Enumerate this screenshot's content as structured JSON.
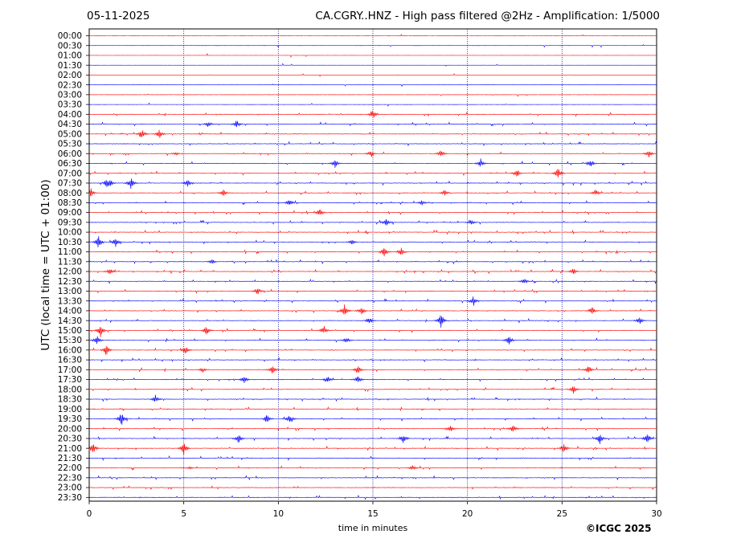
{
  "header": {
    "date": "05-11-2025",
    "title": "CA.CGRY..HNZ - High pass filtered @2Hz - Amplification: 1/5000"
  },
  "footer": {
    "copyright": "©ICGC 2025"
  },
  "colors": {
    "red_trace": "#ff0000",
    "blue_trace": "#0000ff",
    "grid": "#00008b"
  },
  "chart_data": {
    "type": "line",
    "title": "CA.CGRY..HNZ - High pass filtered @2Hz - Amplification: 1/5000",
    "xlabel": "time in minutes",
    "ylabel": "UTC (local time = UTC + 01:00)",
    "xlim": [
      0,
      30
    ],
    "x_ticks": [
      0,
      5,
      10,
      15,
      20,
      25,
      30
    ],
    "grid": "vertical dotted at 5-minute intervals",
    "rows": [
      "00:00",
      "00:30",
      "01:00",
      "01:30",
      "02:00",
      "02:30",
      "03:00",
      "03:30",
      "04:00",
      "04:30",
      "05:00",
      "05:30",
      "06:00",
      "06:30",
      "07:00",
      "07:30",
      "08:00",
      "08:30",
      "09:00",
      "09:30",
      "10:00",
      "10:30",
      "11:00",
      "11:30",
      "12:00",
      "12:30",
      "13:00",
      "13:30",
      "14:00",
      "14:30",
      "15:00",
      "15:30",
      "16:00",
      "16:30",
      "17:00",
      "17:30",
      "18:00",
      "18:30",
      "19:00",
      "19:30",
      "20:00",
      "20:30",
      "21:00",
      "21:30",
      "22:00",
      "22:30",
      "23:00",
      "23:30"
    ],
    "row_colors": "alternating red (even rows) / blue (odd rows)",
    "events": [
      {
        "row": "04:00",
        "minute": 15.0,
        "amp": 0.6
      },
      {
        "row": "04:30",
        "minute": 6.3,
        "amp": 0.4
      },
      {
        "row": "04:30",
        "minute": 7.8,
        "amp": 0.5
      },
      {
        "row": "05:00",
        "minute": 2.8,
        "amp": 0.7
      },
      {
        "row": "05:00",
        "minute": 3.7,
        "amp": 0.6
      },
      {
        "row": "06:00",
        "minute": 4.6,
        "amp": 0.2
      },
      {
        "row": "06:00",
        "minute": 14.9,
        "amp": 0.4
      },
      {
        "row": "06:00",
        "minute": 18.6,
        "amp": 0.5
      },
      {
        "row": "06:00",
        "minute": 29.6,
        "amp": 0.5
      },
      {
        "row": "06:30",
        "minute": 13.0,
        "amp": 0.5
      },
      {
        "row": "06:30",
        "minute": 20.7,
        "amp": 0.5
      },
      {
        "row": "06:30",
        "minute": 26.5,
        "amp": 0.5
      },
      {
        "row": "07:00",
        "minute": 22.6,
        "amp": 0.5
      },
      {
        "row": "07:00",
        "minute": 24.8,
        "amp": 0.8
      },
      {
        "row": "07:30",
        "minute": 0.9,
        "amp": 0.4
      },
      {
        "row": "07:30",
        "minute": 1.1,
        "amp": 0.5
      },
      {
        "row": "07:30",
        "minute": 2.2,
        "amp": 0.7
      },
      {
        "row": "07:30",
        "minute": 5.2,
        "amp": 0.5
      },
      {
        "row": "08:00",
        "minute": 0.1,
        "amp": 0.5
      },
      {
        "row": "08:00",
        "minute": 7.1,
        "amp": 0.4
      },
      {
        "row": "08:00",
        "minute": 18.8,
        "amp": 0.4
      },
      {
        "row": "08:00",
        "minute": 26.8,
        "amp": 0.4
      },
      {
        "row": "08:30",
        "minute": 10.6,
        "amp": 0.5
      },
      {
        "row": "08:30",
        "minute": 17.6,
        "amp": 0.3
      },
      {
        "row": "09:00",
        "minute": 12.2,
        "amp": 0.5
      },
      {
        "row": "09:30",
        "minute": 15.7,
        "amp": 0.5
      },
      {
        "row": "09:30",
        "minute": 20.2,
        "amp": 0.3
      },
      {
        "row": "10:30",
        "minute": 0.5,
        "amp": 0.8
      },
      {
        "row": "10:30",
        "minute": 1.4,
        "amp": 0.6
      },
      {
        "row": "10:30",
        "minute": 13.9,
        "amp": 0.3
      },
      {
        "row": "11:00",
        "minute": 15.6,
        "amp": 0.6
      },
      {
        "row": "11:00",
        "minute": 16.5,
        "amp": 0.5
      },
      {
        "row": "11:30",
        "minute": 6.5,
        "amp": 0.3
      },
      {
        "row": "12:00",
        "minute": 1.1,
        "amp": 0.4
      },
      {
        "row": "12:00",
        "minute": 25.6,
        "amp": 0.4
      },
      {
        "row": "12:30",
        "minute": 23.0,
        "amp": 0.4
      },
      {
        "row": "13:00",
        "minute": 8.9,
        "amp": 0.5
      },
      {
        "row": "13:30",
        "minute": 20.3,
        "amp": 0.6
      },
      {
        "row": "14:00",
        "minute": 13.5,
        "amp": 0.8
      },
      {
        "row": "14:00",
        "minute": 14.4,
        "amp": 0.5
      },
      {
        "row": "14:00",
        "minute": 26.6,
        "amp": 0.5
      },
      {
        "row": "14:30",
        "minute": 14.8,
        "amp": 0.5
      },
      {
        "row": "14:30",
        "minute": 18.6,
        "amp": 0.9
      },
      {
        "row": "14:30",
        "minute": 29.1,
        "amp": 0.5
      },
      {
        "row": "15:00",
        "minute": 0.6,
        "amp": 0.8
      },
      {
        "row": "15:00",
        "minute": 6.2,
        "amp": 0.6
      },
      {
        "row": "15:00",
        "minute": 12.4,
        "amp": 0.5
      },
      {
        "row": "15:30",
        "minute": 0.4,
        "amp": 0.6
      },
      {
        "row": "15:30",
        "minute": 13.6,
        "amp": 0.4
      },
      {
        "row": "15:30",
        "minute": 22.2,
        "amp": 0.6
      },
      {
        "row": "16:00",
        "minute": 0.9,
        "amp": 0.7
      },
      {
        "row": "16:00",
        "minute": 5.1,
        "amp": 0.5
      },
      {
        "row": "17:00",
        "minute": 6.0,
        "amp": 0.3
      },
      {
        "row": "17:00",
        "minute": 9.7,
        "amp": 0.6
      },
      {
        "row": "17:00",
        "minute": 14.2,
        "amp": 0.6
      },
      {
        "row": "17:00",
        "minute": 26.4,
        "amp": 0.6
      },
      {
        "row": "17:30",
        "minute": 8.2,
        "amp": 0.5
      },
      {
        "row": "17:30",
        "minute": 12.6,
        "amp": 0.5
      },
      {
        "row": "17:30",
        "minute": 14.2,
        "amp": 0.5
      },
      {
        "row": "18:00",
        "minute": 25.6,
        "amp": 0.5
      },
      {
        "row": "18:30",
        "minute": 3.5,
        "amp": 0.5
      },
      {
        "row": "19:30",
        "minute": 1.7,
        "amp": 0.9
      },
      {
        "row": "19:30",
        "minute": 9.4,
        "amp": 0.5
      },
      {
        "row": "19:30",
        "minute": 10.6,
        "amp": 0.6
      },
      {
        "row": "20:00",
        "minute": 19.1,
        "amp": 0.4
      },
      {
        "row": "20:00",
        "minute": 22.4,
        "amp": 0.5
      },
      {
        "row": "20:30",
        "minute": 7.9,
        "amp": 0.6
      },
      {
        "row": "20:30",
        "minute": 16.6,
        "amp": 0.6
      },
      {
        "row": "20:30",
        "minute": 27.0,
        "amp": 0.7
      },
      {
        "row": "20:30",
        "minute": 29.5,
        "amp": 0.7
      },
      {
        "row": "21:00",
        "minute": 0.2,
        "amp": 0.8
      },
      {
        "row": "21:00",
        "minute": 5.0,
        "amp": 0.8
      },
      {
        "row": "21:00",
        "minute": 25.1,
        "amp": 0.6
      },
      {
        "row": "22:00",
        "minute": 5.3,
        "amp": 0.2
      },
      {
        "row": "22:00",
        "minute": 17.1,
        "amp": 0.3
      }
    ]
  }
}
